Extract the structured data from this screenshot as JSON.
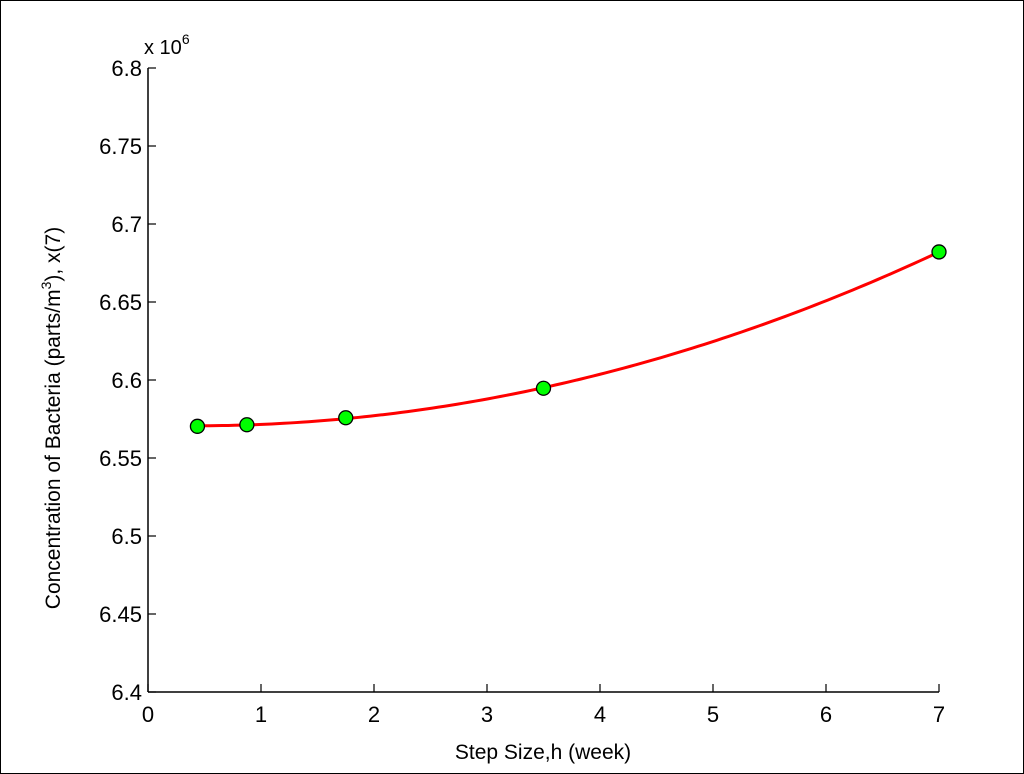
{
  "chart_data": {
    "type": "line",
    "title": "",
    "xlabel": "Step Size,h (week)",
    "ylabel_main": "Concentration of Bacteria (parts/m",
    "ylabel_sup": "3",
    "ylabel_tail": "), x(7)",
    "y_exponent_base": "x 10",
    "y_exponent_power": "6",
    "xlim": [
      0,
      7
    ],
    "ylim": [
      6.4,
      6.8
    ],
    "x_ticks": [
      0,
      1,
      2,
      3,
      4,
      5,
      6,
      7
    ],
    "x_tick_labels": [
      "0",
      "1",
      "2",
      "3",
      "4",
      "5",
      "6",
      "7"
    ],
    "y_ticks": [
      6.4,
      6.45,
      6.5,
      6.55,
      6.6,
      6.65,
      6.7,
      6.75,
      6.8
    ],
    "y_tick_labels": [
      "6.4",
      "6.45",
      "6.5",
      "6.55",
      "6.6",
      "6.65",
      "6.7",
      "6.75",
      "6.8"
    ],
    "grid": false,
    "series": [
      {
        "kind": "fit-curve",
        "color": "#ff0000",
        "x": [
          0.4375,
          0.875,
          1.75,
          3.5,
          7
        ],
        "y": [
          6.5703,
          6.5713,
          6.5758,
          6.5947,
          6.6821
        ]
      },
      {
        "kind": "markers",
        "color": "#00ff00",
        "edge_color": "#000000",
        "x": [
          0.4375,
          0.875,
          1.75,
          3.5,
          7
        ],
        "y": [
          6.5703,
          6.5713,
          6.5758,
          6.5947,
          6.6821
        ]
      }
    ]
  }
}
